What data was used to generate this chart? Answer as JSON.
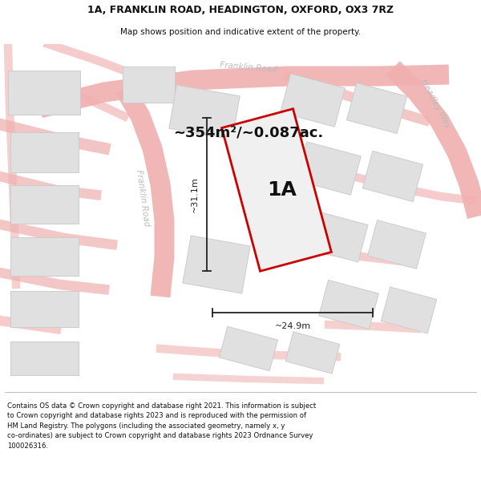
{
  "title_line1": "1A, FRANKLIN ROAD, HEADINGTON, OXFORD, OX3 7RZ",
  "title_line2": "Map shows position and indicative extent of the property.",
  "area_text": "~354m²/~0.087ac.",
  "label_1a": "1A",
  "dim_width": "~24.9m",
  "dim_height": "~31.1m",
  "road_label_franklin_diag": "Franklin Road",
  "road_label_franklin_top": "Franklin Road",
  "road_label_headley": "Headley Way",
  "footer_text": "Contains OS data © Crown copyright and database right 2021. This information is subject to Crown copyright and database rights 2023 and is reproduced with the permission of HM Land Registry. The polygons (including the associated geometry, namely x, y co-ordinates) are subject to Crown copyright and database rights 2023 Ordnance Survey 100026316.",
  "bg_color": "#ffffff",
  "map_bg": "#ffffff",
  "road_color": "#f0b0b0",
  "building_color": "#e0e0e0",
  "building_edge": "#cccccc",
  "highlight_color": "#cc0000",
  "highlight_fill": "#f0f0f0",
  "text_color": "#111111",
  "road_text_color": "#bbbbbb",
  "dim_color": "#222222",
  "footer_color": "#111111"
}
